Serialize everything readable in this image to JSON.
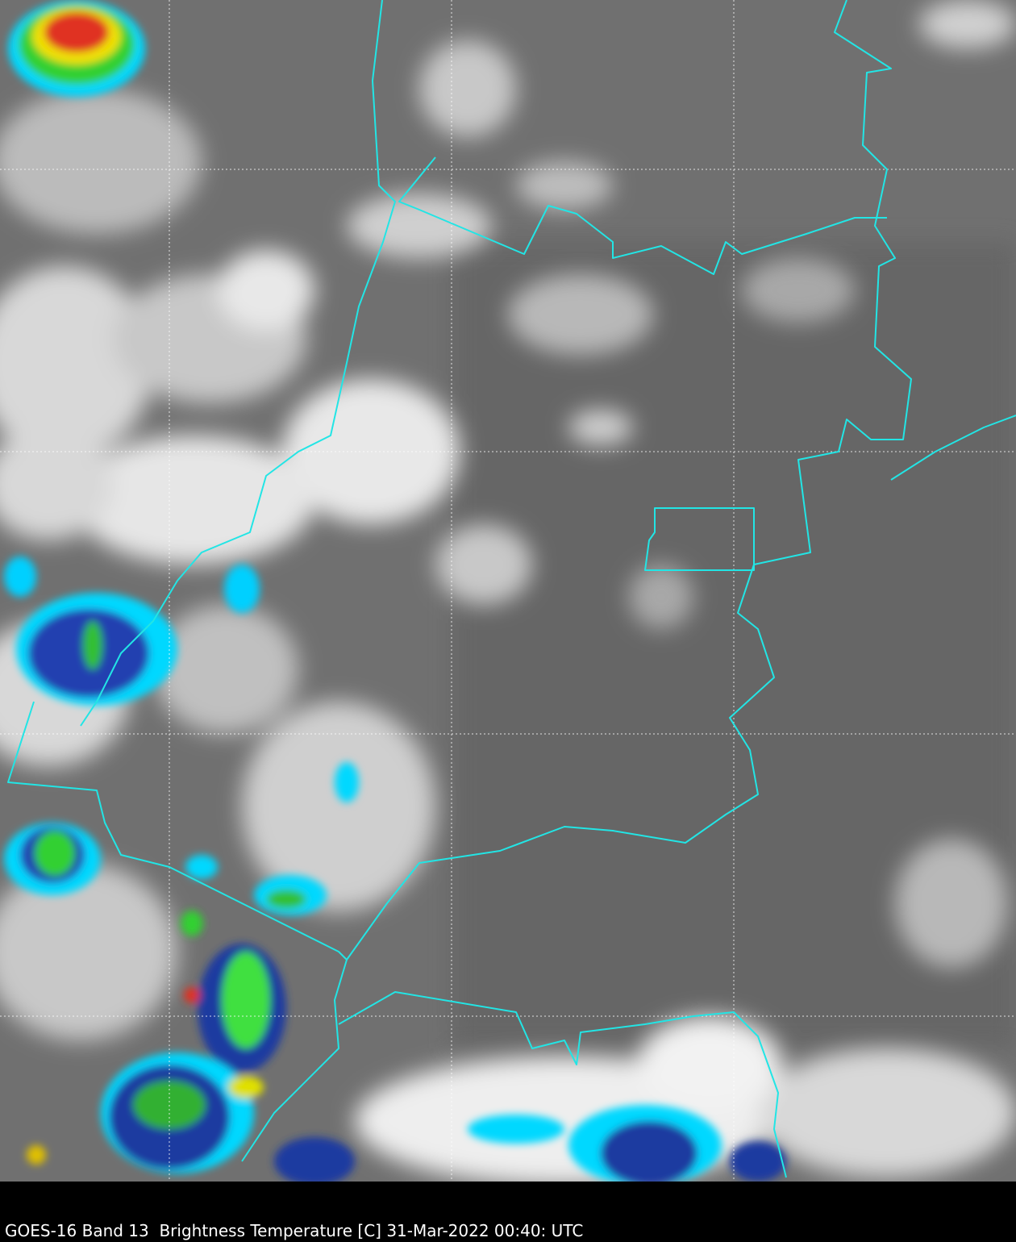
{
  "caption": "GOES-16 Band 13  Brightness Temperature [C] 31-Mar-2022 00:40: UTC",
  "colors": {
    "background_gray": "#6e6e6e",
    "boundary": "#22e5e5",
    "grid": "#ffffff",
    "cold_cyan": "#00e0ff",
    "cold_blue": "#1030a0",
    "cold_green": "#30e030",
    "cold_yellow": "#f0f000",
    "cold_red": "#e02020"
  },
  "map": {
    "layers": [
      "infrared-imagery",
      "political-boundaries",
      "lat-lon-grid"
    ],
    "grid": true
  }
}
